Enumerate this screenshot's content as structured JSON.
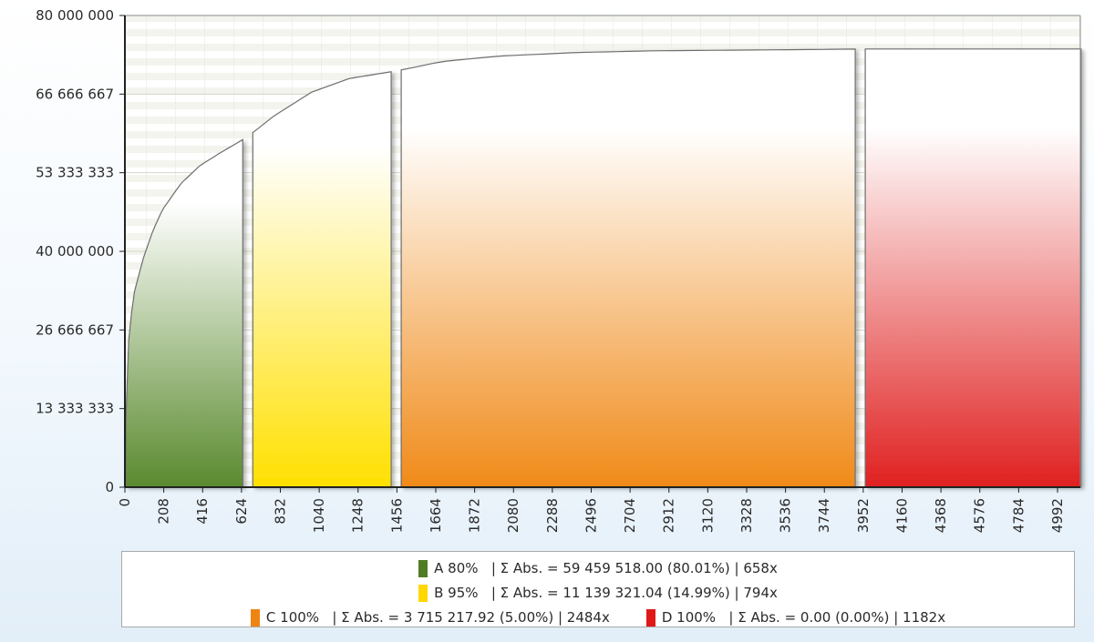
{
  "chart_data": {
    "type": "area",
    "y_ticks": [
      "80 000 000",
      "66 666 667",
      "53 333 333",
      "40 000 000",
      "26 666 667",
      "13 333 333",
      "0"
    ],
    "x_ticks": [
      "0",
      "208",
      "416",
      "624",
      "832",
      "1040",
      "1248",
      "1456",
      "1664",
      "1872",
      "2080",
      "2288",
      "2496",
      "2704",
      "2912",
      "3120",
      "3328",
      "3536",
      "3744",
      "3952",
      "4160",
      "4368",
      "4576",
      "4784",
      "4992"
    ],
    "xlim": [
      0,
      5114
    ],
    "ylim": [
      0,
      80000000
    ],
    "grid": true,
    "legend_position": "bottom",
    "curve": {
      "x": [
        0,
        10,
        25,
        50,
        100,
        150,
        200,
        300,
        400,
        500,
        658,
        700,
        800,
        1000,
        1200,
        1452,
        1500,
        1700,
        2000,
        2400,
        2800,
        3200,
        3600,
        3936,
        3952,
        4400,
        4800,
        5118
      ],
      "y": [
        3000000,
        20000000,
        27000000,
        33000000,
        39000000,
        43500000,
        47000000,
        51500000,
        54500000,
        56500000,
        59459518,
        60500000,
        63000000,
        67000000,
        69300000,
        70598839,
        70900000,
        72200000,
        73100000,
        73700000,
        74000000,
        74100000,
        74200000,
        74314057,
        74314057,
        74314057,
        74314057,
        74314057
      ]
    },
    "series": [
      {
        "name": "A 80%",
        "x_start": 0,
        "x_end": 658,
        "color": "#5a8a2e",
        "stats": "| Σ Abs. = 59 459 518.00 (80.01%) | 658x"
      },
      {
        "name": "B 95%",
        "x_start": 658,
        "x_end": 1452,
        "color": "#ffe000",
        "stats": "| Σ Abs. = 11 139 321.04 (14.99%) | 794x"
      },
      {
        "name": "C 100%",
        "x_start": 1452,
        "x_end": 3936,
        "color": "#f08a18",
        "stats": "| Σ Abs. = 3 715 217.92 (5.00%) | 2484x"
      },
      {
        "name": "D 100%",
        "x_start": 3936,
        "x_end": 5118,
        "color": "#e02020",
        "stats": "| Σ Abs. = 0.00 (0.00%) | 1182x"
      }
    ]
  }
}
